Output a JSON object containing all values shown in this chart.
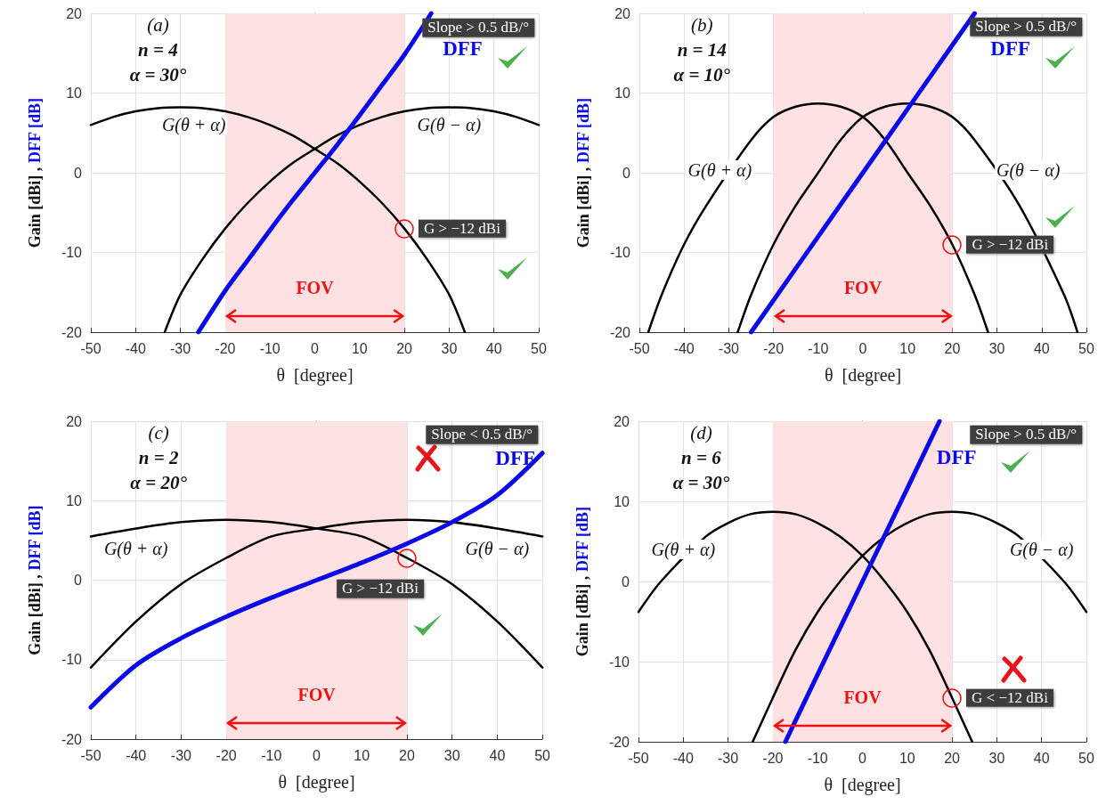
{
  "chart_data": [
    {
      "type": "line",
      "xlabel": "θ  [degree]",
      "ylabel": "Gain [dBi] , DFF [dB]",
      "xlim": [
        -50,
        50
      ],
      "xticks": [
        -50,
        -40,
        -30,
        -20,
        -10,
        0,
        10,
        20,
        30,
        40,
        50
      ],
      "ylim": [
        -20,
        20
      ],
      "yticks": [
        -20,
        -10,
        0,
        10,
        20
      ],
      "grid": true,
      "bands": [
        {
          "axis": "x",
          "from": -20,
          "to": 20,
          "label": "FOV",
          "color": "#fde1e3"
        }
      ],
      "annotations": [
        "(a)",
        "n = 4",
        "α = 30°",
        "Slope > 0.5 dB/°",
        "G > −12 dBi"
      ],
      "series": [
        {
          "name": "G(θ + α)",
          "color": "#000000",
          "x": [
            -50,
            -45,
            -40,
            -35,
            -30,
            -25,
            -20,
            -15,
            -10,
            -5,
            0,
            5,
            10,
            15,
            20,
            25,
            30,
            33.5
          ],
          "values": [
            6.0,
            7.0,
            7.7,
            8.1,
            8.2,
            8.1,
            7.7,
            7.0,
            6.0,
            4.7,
            3.0,
            1.2,
            -1.1,
            -3.8,
            -7.0,
            -10.8,
            -15.3,
            -20
          ]
        },
        {
          "name": "G(θ − α)",
          "color": "#000000",
          "x": [
            -33.5,
            -30,
            -25,
            -20,
            -15,
            -10,
            -5,
            0,
            5,
            10,
            15,
            20,
            25,
            30,
            35,
            40,
            45,
            50
          ],
          "values": [
            -20,
            -15.3,
            -10.8,
            -7.0,
            -3.8,
            -1.1,
            1.2,
            3.0,
            4.7,
            6.0,
            7.0,
            7.7,
            8.1,
            8.2,
            8.1,
            7.7,
            7.0,
            6.0
          ]
        },
        {
          "name": "DFF",
          "color": "#0a0ae6",
          "x": [
            -26,
            -20,
            -15,
            -10,
            -5,
            0,
            5,
            10,
            15,
            20,
            26
          ],
          "values": [
            -20,
            -14.8,
            -11,
            -7.2,
            -3.5,
            0,
            3.5,
            7.2,
            11,
            14.8,
            20
          ]
        }
      ]
    },
    {
      "type": "line",
      "xlabel": "θ  [degree]",
      "ylabel": "Gain [dBi] , DFF [dB]",
      "xlim": [
        -50,
        50
      ],
      "xticks": [
        -50,
        -40,
        -30,
        -20,
        -10,
        0,
        10,
        20,
        30,
        40,
        50
      ],
      "ylim": [
        -20,
        20
      ],
      "yticks": [
        -20,
        -10,
        0,
        10,
        20
      ],
      "grid": true,
      "bands": [
        {
          "axis": "x",
          "from": -20,
          "to": 20,
          "label": "FOV",
          "color": "#fde1e3"
        }
      ],
      "annotations": [
        "(b)",
        "n = 14",
        "α = 10°",
        "Slope > 0.5 dB/°",
        "G > −12 dBi"
      ],
      "series": [
        {
          "name": "G(θ + α)",
          "color": "#000000",
          "x": [
            -48,
            -45,
            -40,
            -35,
            -25,
            -20,
            -15,
            -10,
            -5,
            0,
            5,
            10,
            15,
            20,
            25,
            28
          ],
          "values": [
            -20,
            -15.3,
            -9,
            -4.1,
            4.1,
            7.0,
            8.3,
            8.7,
            8.3,
            7.0,
            4.1,
            0,
            -4.1,
            -9,
            -15.3,
            -20
          ]
        },
        {
          "name": "G(θ − α)",
          "color": "#000000",
          "x": [
            -28,
            -25,
            -20,
            -15,
            -10,
            -5,
            0,
            5,
            10,
            15,
            20,
            25,
            35,
            45,
            48
          ],
          "values": [
            -20,
            -15.3,
            -9,
            -4.1,
            0,
            4.1,
            7.0,
            8.3,
            8.7,
            8.3,
            7.0,
            4.1,
            -4.1,
            -15.3,
            -20
          ]
        },
        {
          "name": "DFF",
          "color": "#0a0ae6",
          "x": [
            -25,
            -20,
            -10,
            0,
            10,
            20,
            25
          ],
          "values": [
            -20,
            -16,
            -8,
            0,
            8,
            16,
            20
          ]
        }
      ]
    },
    {
      "type": "line",
      "xlabel": "θ  [degree]",
      "ylabel": "Gain [dBi] , DFF [dB]",
      "xlim": [
        -50,
        50
      ],
      "xticks": [
        -50,
        -40,
        -30,
        -20,
        -10,
        0,
        10,
        20,
        30,
        40,
        50
      ],
      "ylim": [
        -20,
        20
      ],
      "yticks": [
        -20,
        -10,
        0,
        10,
        20
      ],
      "grid": true,
      "bands": [
        {
          "axis": "x",
          "from": -20,
          "to": 20,
          "label": "FOV",
          "color": "#fde1e3"
        }
      ],
      "annotations": [
        "(c)",
        "n = 2",
        "α = 20°",
        "Slope < 0.5 dB/°",
        "G > −12 dBi"
      ],
      "series": [
        {
          "name": "G(θ + α)",
          "color": "#000000",
          "x": [
            -50,
            -40,
            -30,
            -20,
            -10,
            0,
            10,
            20,
            30,
            40,
            50
          ],
          "values": [
            5.5,
            6.5,
            7.3,
            7.6,
            7.3,
            6.5,
            5.5,
            2.8,
            -0.5,
            -5.2,
            -11
          ]
        },
        {
          "name": "G(θ − α)",
          "color": "#000000",
          "x": [
            -50,
            -40,
            -30,
            -20,
            -10,
            0,
            10,
            20,
            30,
            40,
            50
          ],
          "values": [
            -11,
            -5.2,
            -0.5,
            2.8,
            5.5,
            6.5,
            7.3,
            7.6,
            7.3,
            6.5,
            5.5
          ]
        },
        {
          "name": "DFF",
          "color": "#0a0ae6",
          "x": [
            -50,
            -40,
            -30,
            -20,
            -10,
            0,
            10,
            20,
            30,
            40,
            50
          ],
          "values": [
            -16,
            -10.7,
            -7.3,
            -4.6,
            -2.2,
            0,
            2.2,
            4.6,
            7.3,
            10.7,
            16
          ]
        }
      ]
    },
    {
      "type": "line",
      "xlabel": "θ  [degree]",
      "ylabel": "Gain [dBi] , DFF [dB]",
      "xlim": [
        -50,
        50
      ],
      "xticks": [
        -50,
        -40,
        -30,
        -20,
        -10,
        0,
        10,
        20,
        30,
        40,
        50
      ],
      "ylim": [
        -20,
        20
      ],
      "yticks": [
        -20,
        -10,
        0,
        10,
        20
      ],
      "grid": true,
      "bands": [
        {
          "axis": "x",
          "from": -20,
          "to": 20,
          "label": "FOV",
          "color": "#fde1e3"
        }
      ],
      "annotations": [
        "(d)",
        "n = 6",
        "α = 30°",
        "Slope > 0.5 dB/°",
        "G < −12 dBi"
      ],
      "series": [
        {
          "name": "G(θ + α)",
          "color": "#000000",
          "x": [
            -50,
            -45,
            -35,
            -30,
            -25,
            -20,
            -15,
            -10,
            -5,
            0,
            5,
            10,
            15,
            20,
            24.5
          ],
          "values": [
            -3.8,
            0,
            5.6,
            7.3,
            8.4,
            8.7,
            8.4,
            7.3,
            5.6,
            3.2,
            0,
            -3.8,
            -8.6,
            -14.5,
            -20
          ]
        },
        {
          "name": "G(θ − α)",
          "color": "#000000",
          "x": [
            -24.5,
            -20,
            -15,
            -10,
            -5,
            0,
            5,
            10,
            15,
            20,
            25,
            30,
            35,
            45,
            50
          ],
          "values": [
            -20,
            -14.5,
            -8.6,
            -3.8,
            0,
            3.2,
            5.6,
            7.3,
            8.4,
            8.7,
            8.4,
            7.3,
            5.6,
            0,
            -3.8
          ]
        },
        {
          "name": "DFF",
          "color": "#0a0ae6",
          "x": [
            -17.2,
            -10,
            0,
            10,
            17.2
          ],
          "values": [
            -20,
            -11.6,
            0,
            11.6,
            20
          ]
        }
      ]
    }
  ]
}
